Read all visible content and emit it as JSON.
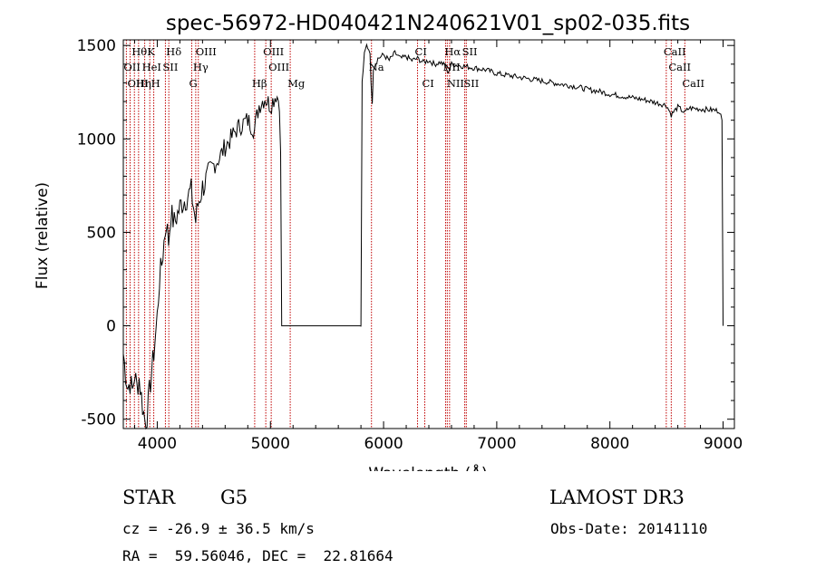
{
  "chart_data": {
    "type": "line",
    "title": "spec-56972-HD040421N240621V01_sp02-035.fits",
    "xlabel": "Wavelength (Å)",
    "ylabel": "Flux (relative)",
    "xlim": [
      3700,
      9100
    ],
    "ylim": [
      -550,
      1530
    ],
    "xticks": [
      4000,
      5000,
      6000,
      7000,
      8000,
      9000
    ],
    "yticks": [
      -500,
      0,
      500,
      1000,
      1500
    ],
    "series": [
      {
        "name": "flux",
        "points": [
          [
            3700,
            -150
          ],
          [
            3720,
            -250
          ],
          [
            3740,
            -330
          ],
          [
            3760,
            -300
          ],
          [
            3780,
            -350
          ],
          [
            3800,
            -260
          ],
          [
            3820,
            -330
          ],
          [
            3840,
            -280
          ],
          [
            3860,
            -380
          ],
          [
            3880,
            -470
          ],
          [
            3900,
            -530
          ],
          [
            3920,
            -420
          ],
          [
            3940,
            -300
          ],
          [
            3960,
            -200
          ],
          [
            3980,
            -80
          ],
          [
            4000,
            50
          ],
          [
            4020,
            250
          ],
          [
            4040,
            330
          ],
          [
            4060,
            450
          ],
          [
            4080,
            560
          ],
          [
            4100,
            450
          ],
          [
            4120,
            600
          ],
          [
            4150,
            550
          ],
          [
            4180,
            600
          ],
          [
            4210,
            650
          ],
          [
            4250,
            680
          ],
          [
            4300,
            720
          ],
          [
            4340,
            560
          ],
          [
            4360,
            650
          ],
          [
            4400,
            740
          ],
          [
            4450,
            800
          ],
          [
            4500,
            860
          ],
          [
            4550,
            900
          ],
          [
            4600,
            960
          ],
          [
            4650,
            1000
          ],
          [
            4700,
            1050
          ],
          [
            4750,
            1080
          ],
          [
            4800,
            1100
          ],
          [
            4860,
            1050
          ],
          [
            4880,
            1120
          ],
          [
            4900,
            1180
          ],
          [
            4950,
            1220
          ],
          [
            5000,
            1180
          ],
          [
            5050,
            1240
          ],
          [
            5080,
            1200
          ],
          [
            5090,
            900
          ],
          [
            5100,
            0
          ],
          [
            5800,
            0
          ],
          [
            5810,
            1300
          ],
          [
            5830,
            1450
          ],
          [
            5850,
            1500
          ],
          [
            5880,
            1470
          ],
          [
            5890,
            1280
          ],
          [
            5900,
            1200
          ],
          [
            5910,
            1380
          ],
          [
            5950,
            1430
          ],
          [
            6000,
            1450
          ],
          [
            6050,
            1420
          ],
          [
            6100,
            1460
          ],
          [
            6150,
            1430
          ],
          [
            6200,
            1440
          ],
          [
            6250,
            1420
          ],
          [
            6300,
            1430
          ],
          [
            6350,
            1410
          ],
          [
            6400,
            1420
          ],
          [
            6450,
            1400
          ],
          [
            6500,
            1410
          ],
          [
            6550,
            1390
          ],
          [
            6563,
            1350
          ],
          [
            6600,
            1400
          ],
          [
            6700,
            1390
          ],
          [
            6800,
            1380
          ],
          [
            6900,
            1370
          ],
          [
            7000,
            1350
          ],
          [
            7100,
            1340
          ],
          [
            7200,
            1330
          ],
          [
            7300,
            1320
          ],
          [
            7400,
            1310
          ],
          [
            7500,
            1300
          ],
          [
            7600,
            1290
          ],
          [
            7700,
            1280
          ],
          [
            7800,
            1265
          ],
          [
            7900,
            1255
          ],
          [
            8000,
            1240
          ],
          [
            8100,
            1230
          ],
          [
            8200,
            1220
          ],
          [
            8300,
            1210
          ],
          [
            8400,
            1195
          ],
          [
            8500,
            1180
          ],
          [
            8542,
            1130
          ],
          [
            8600,
            1170
          ],
          [
            8662,
            1140
          ],
          [
            8700,
            1165
          ],
          [
            8800,
            1160
          ],
          [
            8900,
            1155
          ],
          [
            8970,
            1150
          ],
          [
            8990,
            1100
          ],
          [
            9000,
            0
          ]
        ]
      }
    ],
    "line_markers": [
      {
        "label": "Hθ",
        "wavelength": 3798,
        "row": 0
      },
      {
        "label": "OII",
        "wavelength": 3727,
        "row": 1
      },
      {
        "label": "OIII",
        "wavelength": 3760,
        "row": 2
      },
      {
        "label": "K",
        "wavelength": 3934,
        "row": 0
      },
      {
        "label": "HeI",
        "wavelength": 3889,
        "row": 1
      },
      {
        "label": "Hη",
        "wavelength": 3835,
        "row": 2
      },
      {
        "label": "H",
        "wavelength": 3969,
        "row": 2
      },
      {
        "label": "SII",
        "wavelength": 4072,
        "row": 1
      },
      {
        "label": "Hδ",
        "wavelength": 4102,
        "row": 0
      },
      {
        "label": "OIII",
        "wavelength": 4363,
        "row": 0
      },
      {
        "label": "Hγ",
        "wavelength": 4340,
        "row": 1
      },
      {
        "label": "G",
        "wavelength": 4305,
        "row": 2
      },
      {
        "label": "Hβ",
        "wavelength": 4861,
        "row": 2
      },
      {
        "label": "OIII",
        "wavelength": 4959,
        "row": 0
      },
      {
        "label": "OIII",
        "wavelength": 5007,
        "row": 1
      },
      {
        "label": "Mg",
        "wavelength": 5175,
        "row": 2
      },
      {
        "label": "Na",
        "wavelength": 5893,
        "row": 1
      },
      {
        "label": "CI",
        "wavelength": 6300,
        "row": 0
      },
      {
        "label": "CI",
        "wavelength": 6364,
        "row": 2
      },
      {
        "label": "Hα",
        "wavelength": 6563,
        "row": 0
      },
      {
        "label": "NII",
        "wavelength": 6548,
        "row": 1
      },
      {
        "label": "NII",
        "wavelength": 6583,
        "row": 2
      },
      {
        "label": "SII",
        "wavelength": 6717,
        "row": 0
      },
      {
        "label": "SII",
        "wavelength": 6731,
        "row": 2
      },
      {
        "label": "CaII",
        "wavelength": 8498,
        "row": 0
      },
      {
        "label": "CaII",
        "wavelength": 8542,
        "row": 1
      },
      {
        "label": "CaII",
        "wavelength": 8662,
        "row": 2
      }
    ],
    "marker_color": "#c00000",
    "line_color": "#000000"
  },
  "info": {
    "object_type": "STAR",
    "subclass": "G5",
    "survey": "LAMOST DR3",
    "redshift": "cz = -26.9 ± 36.5 km/s",
    "obs_date": "Obs-Date: 20141110",
    "coords": "RA =  59.56046, DEC =  22.81664"
  }
}
